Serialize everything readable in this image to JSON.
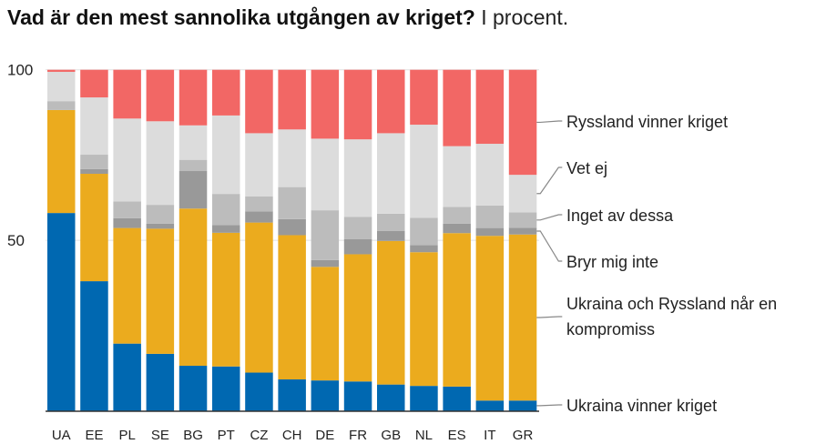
{
  "chart_data": {
    "type": "bar",
    "stacked": true,
    "title": "Vad är den mest sannolika utgången av kriget?",
    "subtitle": "I procent.",
    "xlabel": "",
    "ylabel": "",
    "ylim": [
      0,
      100
    ],
    "yticks": [
      "50",
      "100"
    ],
    "ytick_values": [
      50,
      100
    ],
    "grid": true,
    "legend_placement": "right",
    "categories": [
      "UA",
      "EE",
      "PL",
      "SE",
      "BG",
      "PT",
      "CZ",
      "CH",
      "DE",
      "FR",
      "GB",
      "NL",
      "ES",
      "IT",
      "GR"
    ],
    "series": [
      {
        "name": "Ukraina vinner kriget",
        "color": "#0068b1",
        "values": [
          58.0,
          38.0,
          19.7,
          16.7,
          13.2,
          13.0,
          11.2,
          9.2,
          8.9,
          8.6,
          7.7,
          7.3,
          7.1,
          3.0,
          3.0
        ]
      },
      {
        "name": "Ukraina och Ryssland når en kompromiss",
        "color": "#ebab1e",
        "values": [
          30.2,
          31.5,
          33.9,
          36.7,
          46.1,
          39.2,
          44.0,
          42.3,
          33.3,
          37.3,
          42.1,
          39.2,
          45.0,
          48.3,
          48.7
        ]
      },
      {
        "name": "Bryr mig inte",
        "color": "#999999",
        "values": [
          0.0,
          1.4,
          2.9,
          1.5,
          11.0,
          2.3,
          3.3,
          4.7,
          2.0,
          4.4,
          2.9,
          2.1,
          2.8,
          2.3,
          2.0
        ]
      },
      {
        "name": "Inget av dessa",
        "color": "#bcbcbc",
        "values": [
          2.6,
          4.2,
          4.9,
          5.5,
          3.3,
          9.1,
          4.4,
          9.4,
          14.6,
          6.6,
          5.1,
          8.0,
          4.9,
          6.6,
          4.5
        ]
      },
      {
        "name": "Vet ej",
        "color": "#dcdcdc",
        "values": [
          8.6,
          16.8,
          24.3,
          24.5,
          10.1,
          23.0,
          18.5,
          16.9,
          21.0,
          22.7,
          23.6,
          27.3,
          17.8,
          18.1,
          11.0
        ]
      },
      {
        "name": "Ryssland vinner kriget",
        "color": "#f26765",
        "values": [
          0.6,
          8.1,
          14.3,
          15.1,
          16.3,
          13.4,
          18.6,
          17.5,
          20.2,
          20.4,
          18.6,
          16.1,
          22.4,
          21.7,
          30.8
        ]
      }
    ],
    "legend_labels": [
      {
        "series": "Ryssland vinner kriget",
        "lines": [
          "Ryssland vinner kriget"
        ]
      },
      {
        "series": "Vet ej",
        "lines": [
          "Vet ej"
        ]
      },
      {
        "series": "Inget av dessa",
        "lines": [
          "Inget av dessa"
        ]
      },
      {
        "series": "Bryr mig inte",
        "lines": [
          "Bryr mig inte"
        ]
      },
      {
        "series": "Ukraina och Ryssland når en kompromiss",
        "lines": [
          "Ukraina och Ryssland når en",
          "kompromiss"
        ]
      },
      {
        "series": "Ukraina vinner kriget",
        "lines": [
          "Ukraina vinner kriget"
        ]
      }
    ]
  }
}
